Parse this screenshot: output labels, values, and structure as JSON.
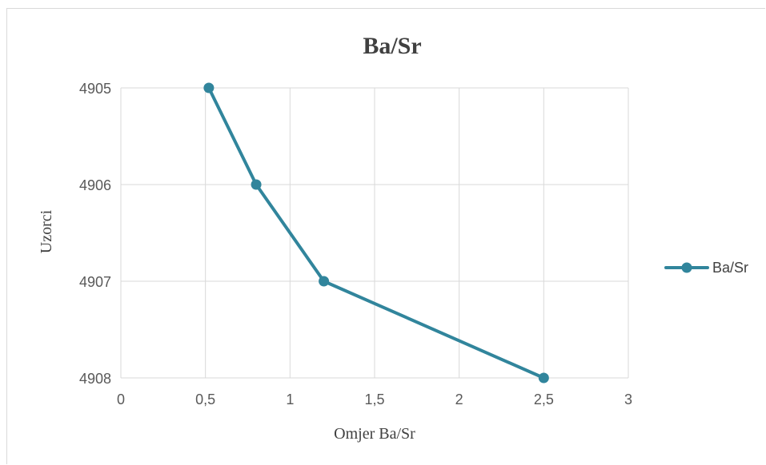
{
  "chart_data": {
    "type": "line",
    "title": "Ba/Sr",
    "xlabel": "Omjer Ba/Sr",
    "ylabel": "Uzorci",
    "xlim": [
      0,
      3
    ],
    "ylim": [
      4905,
      4908
    ],
    "y_reversed": true,
    "x_ticks": [
      "0",
      "0,5",
      "1",
      "1,5",
      "2",
      "2,5",
      "3"
    ],
    "y_ticks": [
      "4905",
      "4906",
      "4907",
      "4908"
    ],
    "grid": true,
    "legend_position": "right",
    "series": [
      {
        "name": "Ba/Sr",
        "color": "#31859c",
        "points": [
          {
            "x": 0.52,
            "y": 4905
          },
          {
            "x": 0.8,
            "y": 4906
          },
          {
            "x": 1.2,
            "y": 4907
          },
          {
            "x": 2.5,
            "y": 4908
          }
        ]
      }
    ]
  }
}
